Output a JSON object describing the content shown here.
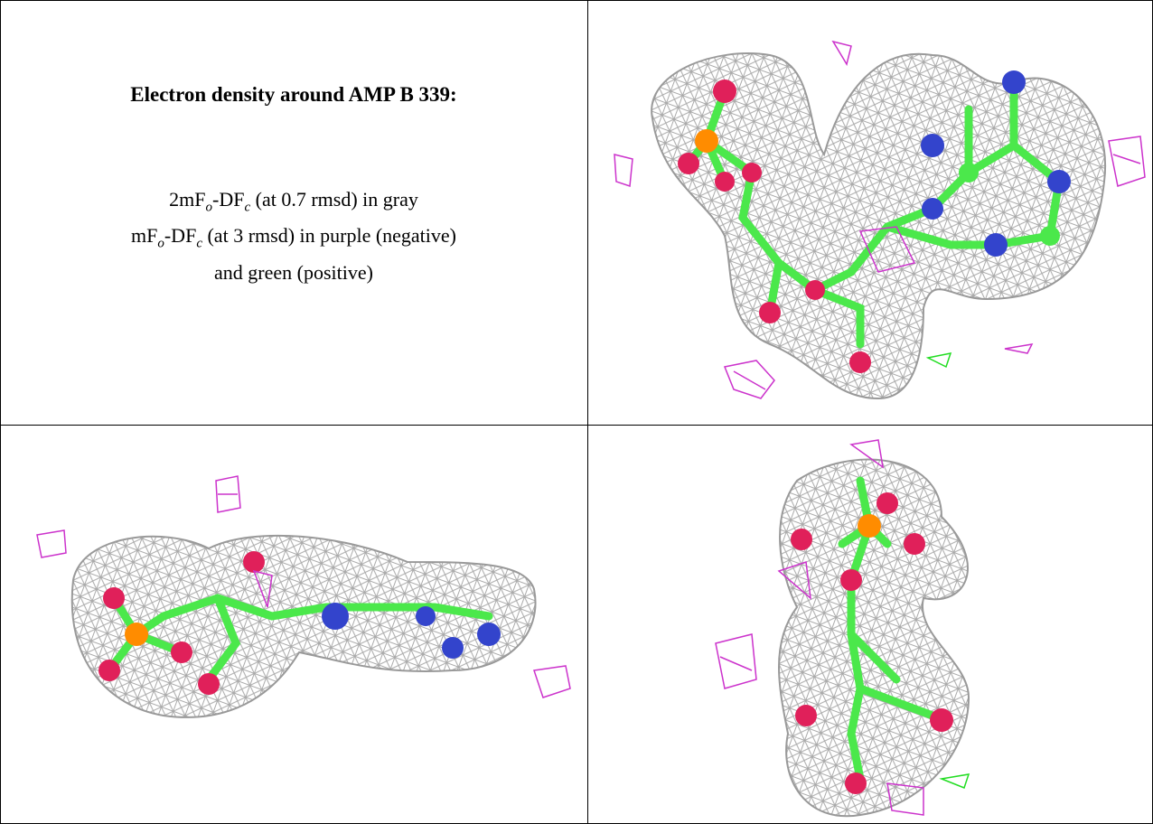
{
  "header": {
    "title": "Electron density around AMP B 339:"
  },
  "legend": {
    "lines": [
      [
        "2mF",
        "o",
        "-DF",
        "c",
        " (at 0.7 rmsd) in gray"
      ],
      [
        "mF",
        "o",
        "-DF",
        "c",
        " (at 3 rmsd) in purple (negative)"
      ],
      [
        "and green (positive)"
      ]
    ]
  }
}
